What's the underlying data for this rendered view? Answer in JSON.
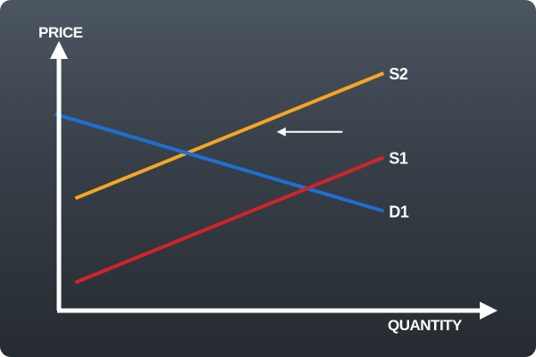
{
  "chart_data": {
    "type": "line",
    "title": "",
    "xlabel": "QUANTITY",
    "ylabel": "PRICE",
    "xlim": [
      0,
      10
    ],
    "ylim": [
      0,
      10
    ],
    "grid": false,
    "legend": "none",
    "background": "#3a424b",
    "axis_color": "#ffffff",
    "series": [
      {
        "name": "S2",
        "color": "#f5a623",
        "x": [
          1.4,
          8.9
        ],
        "y": [
          4.4,
          9.3
        ]
      },
      {
        "name": "D1",
        "color": "#1f6fd1",
        "x": [
          0.9,
          8.9
        ],
        "y": [
          7.7,
          3.9
        ]
      },
      {
        "name": "S1",
        "color": "#d0242a",
        "x": [
          1.4,
          8.9
        ],
        "y": [
          1.1,
          6.0
        ]
      }
    ],
    "annotations": [
      {
        "type": "arrow",
        "direction": "left",
        "from": [
          7.9,
          7.0
        ],
        "to": [
          6.3,
          7.0
        ],
        "color": "#ffffff"
      }
    ]
  }
}
